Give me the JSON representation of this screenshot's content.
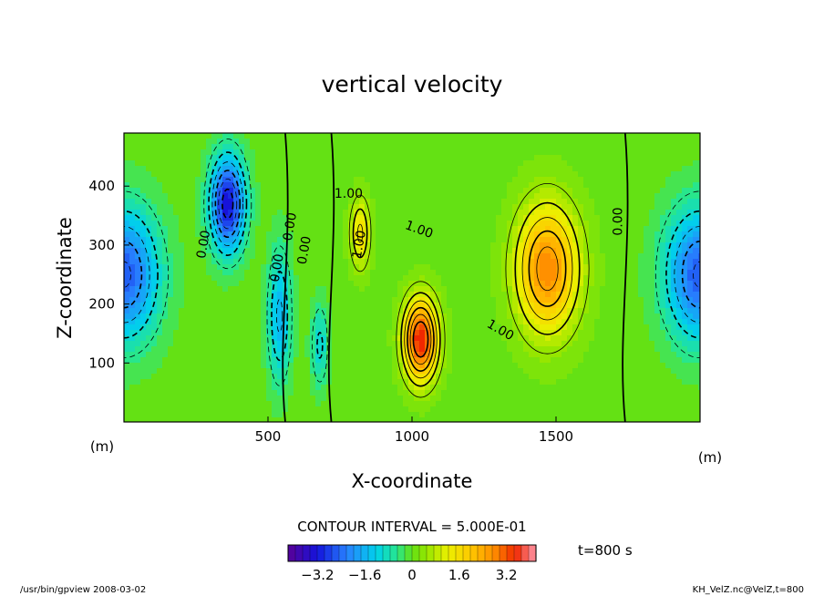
{
  "chart_data": {
    "type": "heatmap",
    "title": "vertical velocity",
    "xlabel": "X-coordinate",
    "ylabel": "Z-coordinate",
    "xunit": "(m)",
    "yunit": "(m)",
    "xlim": [
      0,
      2000
    ],
    "ylim": [
      0,
      490
    ],
    "xticks": [
      "500",
      "1000",
      "1500"
    ],
    "yticks": [
      "100",
      "200",
      "300",
      "400"
    ],
    "contour_interval_text": "CONTOUR INTERVAL = 5.000E-01",
    "contour_interval": 0.5,
    "time_label": "t=800 s",
    "colorbar": {
      "range": [
        -4.2,
        4.2
      ],
      "ticks": [
        "−3.2",
        "−1.6",
        "0",
        "1.6",
        "3.2"
      ],
      "tick_values": [
        -3.2,
        -1.6,
        0,
        1.6,
        3.2
      ]
    },
    "contour_labels": [
      "0.00",
      "0.00",
      "0.00",
      "0.00",
      "1.00",
      "1.00",
      "1.00",
      "1.00",
      "0.00"
    ],
    "features": [
      {
        "name": "downdraft-left-edge",
        "x": 0,
        "z": 250,
        "value": -2.6
      },
      {
        "name": "downdraft-upper",
        "x": 360,
        "z": 370,
        "value": -3.3
      },
      {
        "name": "downdraft-narrow",
        "x": 540,
        "z": 180,
        "value": -1.6
      },
      {
        "name": "downdraft-small",
        "x": 680,
        "z": 130,
        "value": -1.1
      },
      {
        "name": "updraft-narrow",
        "x": 820,
        "z": 320,
        "value": 1.6
      },
      {
        "name": "updraft-strong",
        "x": 1030,
        "z": 140,
        "value": 3.6
      },
      {
        "name": "updraft-broad",
        "x": 1470,
        "z": 260,
        "value": 2.8
      },
      {
        "name": "downdraft-right-edge",
        "x": 2000,
        "z": 250,
        "value": -2.6
      }
    ]
  },
  "footer": {
    "left": "/usr/bin/gpview   2008-03-02",
    "right": "KH_VelZ.nc@VelZ,t=800"
  }
}
